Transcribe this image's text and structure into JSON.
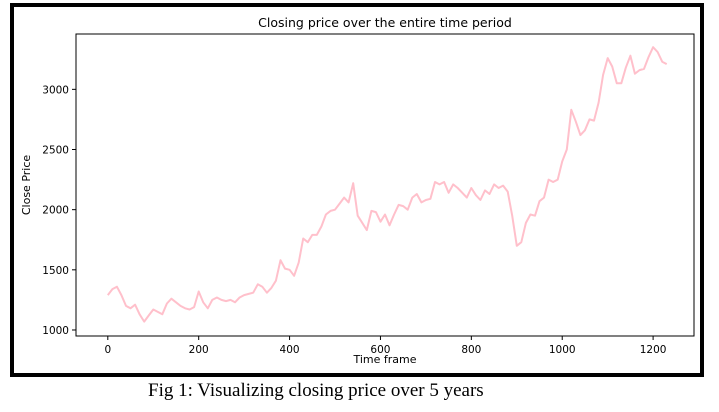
{
  "caption": "Fig 1: Visualizing closing price over 5 years",
  "chart_data": {
    "type": "line",
    "title": "Closing price over the entire time period",
    "xlabel": "Time frame",
    "ylabel": "Close Price",
    "xlim": [
      -70,
      1290
    ],
    "ylim": [
      950,
      3460
    ],
    "xticks": [
      0,
      200,
      400,
      600,
      800,
      1000,
      1200
    ],
    "yticks": [
      1000,
      1500,
      2000,
      2500,
      3000
    ],
    "grid": false,
    "line_color": "#ffc0cb",
    "series": [
      {
        "x": [
          0,
          10,
          20,
          30,
          40,
          50,
          60,
          70,
          80,
          90,
          100,
          110,
          120,
          130,
          140,
          150,
          160,
          170,
          180,
          190,
          200,
          210,
          220,
          230,
          240,
          250,
          260,
          270,
          280,
          290,
          300,
          310,
          320,
          330,
          340,
          350,
          360,
          370,
          380,
          390,
          400,
          410,
          420,
          430,
          440,
          450,
          460,
          470,
          480,
          490,
          500,
          510,
          520,
          530,
          540,
          550,
          560,
          570,
          580,
          590,
          600,
          610,
          620,
          630,
          640,
          650,
          660,
          670,
          680,
          690,
          700,
          710,
          720,
          730,
          740,
          750,
          760,
          770,
          780,
          790,
          800,
          810,
          820,
          830,
          840,
          850,
          860,
          870,
          880,
          890,
          900,
          910,
          920,
          930,
          940,
          950,
          960,
          970,
          980,
          990,
          1000,
          1010,
          1020,
          1030,
          1040,
          1050,
          1060,
          1070,
          1080,
          1090,
          1100,
          1110,
          1120,
          1130,
          1140,
          1150,
          1160,
          1170,
          1180,
          1190,
          1200,
          1210,
          1220,
          1230
        ],
        "y": [
          1290,
          1340,
          1360,
          1290,
          1200,
          1180,
          1210,
          1130,
          1070,
          1120,
          1170,
          1150,
          1130,
          1220,
          1260,
          1230,
          1200,
          1180,
          1170,
          1190,
          1320,
          1230,
          1180,
          1250,
          1270,
          1250,
          1240,
          1250,
          1230,
          1270,
          1290,
          1300,
          1310,
          1380,
          1360,
          1310,
          1350,
          1410,
          1580,
          1510,
          1500,
          1450,
          1560,
          1760,
          1730,
          1790,
          1790,
          1860,
          1960,
          1990,
          2000,
          2050,
          2100,
          2060,
          2220,
          1950,
          1890,
          1830,
          1990,
          1980,
          1900,
          1960,
          1870,
          1960,
          2040,
          2030,
          2000,
          2100,
          2130,
          2060,
          2080,
          2090,
          2230,
          2210,
          2230,
          2140,
          2210,
          2180,
          2140,
          2100,
          2180,
          2120,
          2080,
          2160,
          2130,
          2210,
          2180,
          2200,
          2150,
          1950,
          1700,
          1730,
          1890,
          1960,
          1950,
          2070,
          2100,
          2250,
          2230,
          2250,
          2400,
          2500,
          2830,
          2730,
          2620,
          2660,
          2750,
          2740,
          2890,
          3120,
          3260,
          3190,
          3050,
          3050,
          3180,
          3280,
          3130,
          3160,
          3170,
          3270,
          3350,
          3310,
          3230,
          3210
        ]
      }
    ]
  }
}
